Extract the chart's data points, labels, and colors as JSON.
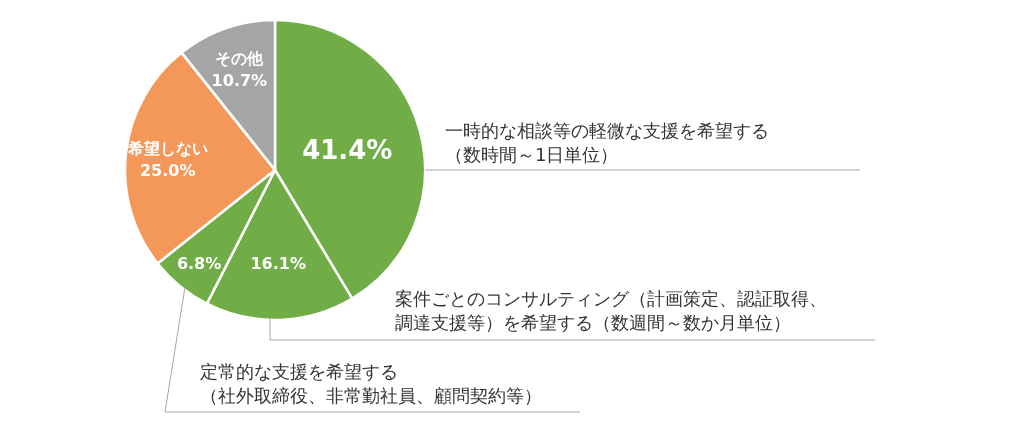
{
  "chart_data": {
    "type": "pie",
    "categories": [
      "一時的な相談等の軽微な支援を希望する（数時間～1日単位）",
      "案件ごとのコンサルティング（計画策定、認証取得、調達支援等）を希望する（数週間～数か月単位）",
      "定常的な支援を希望する（社外取締役、非常勤社員、顧問契約等）",
      "希望しない",
      "その他"
    ],
    "values": [
      41.4,
      16.1,
      6.8,
      25.0,
      10.7
    ],
    "colors": [
      "#70ad47",
      "#70ad47",
      "#70ad47",
      "#f4985a",
      "#a5a5a5"
    ],
    "value_labels": [
      "41.4%",
      "16.1%",
      "6.8%",
      "25.0%",
      "10.7%"
    ]
  }
}
